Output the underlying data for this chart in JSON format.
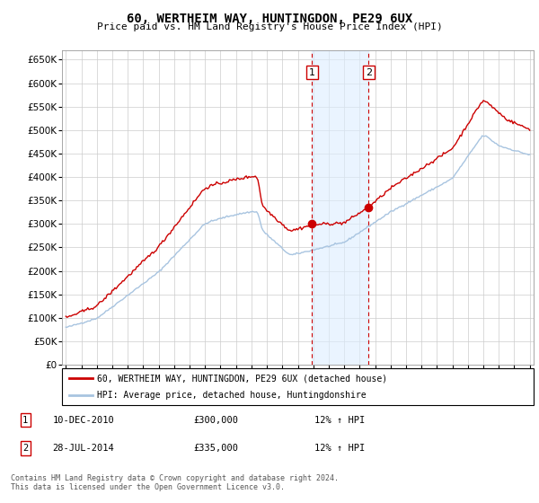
{
  "title": "60, WERTHEIM WAY, HUNTINGDON, PE29 6UX",
  "subtitle": "Price paid vs. HM Land Registry's House Price Index (HPI)",
  "ylim": [
    0,
    670000
  ],
  "yticks": [
    0,
    50000,
    100000,
    150000,
    200000,
    250000,
    300000,
    350000,
    400000,
    450000,
    500000,
    550000,
    600000,
    650000
  ],
  "hpi_color": "#a8c4e0",
  "price_color": "#cc0000",
  "vline_color": "#cc0000",
  "shade_color": "#ddeeff",
  "t1_x": 2010.917,
  "t2_x": 2014.583,
  "t1_price": 300000,
  "t2_price": 335000,
  "t1_hpi": 265000,
  "t2_hpi": 295000,
  "legend_label_price": "60, WERTHEIM WAY, HUNTINGDON, PE29 6UX (detached house)",
  "legend_label_hpi": "HPI: Average price, detached house, Huntingdonshire",
  "annotation1_label": "1",
  "annotation1_date": "10-DEC-2010",
  "annotation1_price": "£300,000",
  "annotation1_hpi": "12% ↑ HPI",
  "annotation2_label": "2",
  "annotation2_date": "28-JUL-2014",
  "annotation2_price": "£335,000",
  "annotation2_hpi": "12% ↑ HPI",
  "footer": "Contains HM Land Registry data © Crown copyright and database right 2024.\nThis data is licensed under the Open Government Licence v3.0.",
  "xmin": 1994.75,
  "xmax": 2025.25
}
